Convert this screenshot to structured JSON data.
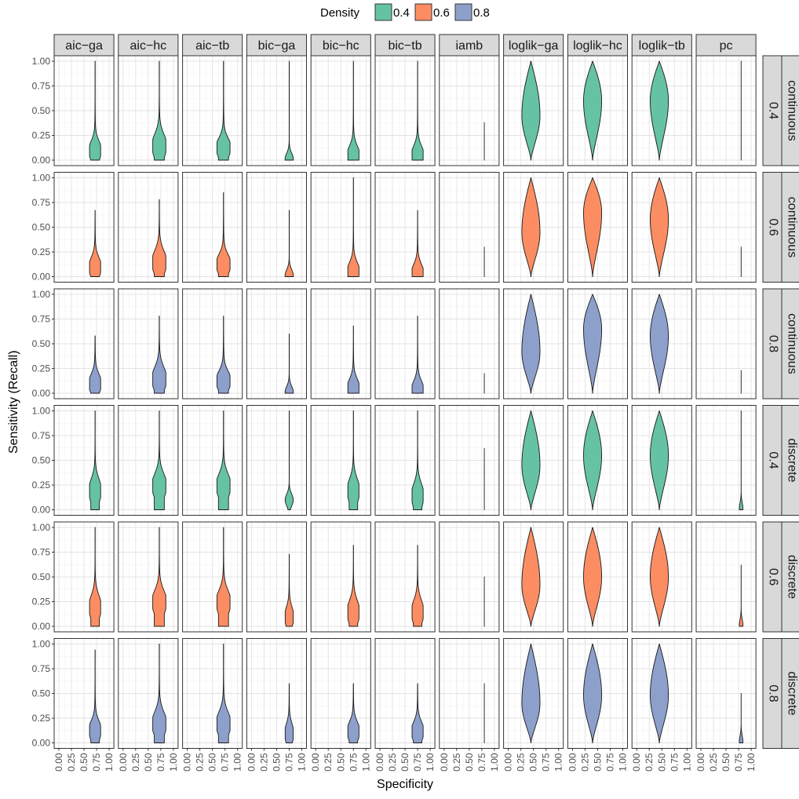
{
  "chart_data": {
    "type": "violin",
    "xlabel": "Specificity",
    "ylabel": "Sensitivity (Recall)",
    "legend": {
      "title": "Density",
      "placement": "top",
      "entries": [
        {
          "label": "0.4",
          "color": "#66c2a5"
        },
        {
          "label": "0.6",
          "color": "#fc8d62"
        },
        {
          "label": "0.8",
          "color": "#8da0cb"
        }
      ]
    },
    "xlim": [
      0,
      1
    ],
    "ylim": [
      0,
      1
    ],
    "x_ticks": [
      "0.00",
      "0.25",
      "0.50",
      "0.75",
      "1.00"
    ],
    "y_ticks": [
      "0.00",
      "0.25",
      "0.50",
      "0.75",
      "1.00"
    ],
    "grid": true,
    "column_facets": [
      "aic−ga",
      "aic−hc",
      "aic−tb",
      "bic−ga",
      "bic−hc",
      "bic−tb",
      "iamb",
      "loglik−ga",
      "loglik−hc",
      "loglik−tb",
      "pc"
    ],
    "row_facets": [
      {
        "type": "continuous",
        "density": "0.4"
      },
      {
        "type": "continuous",
        "density": "0.6"
      },
      {
        "type": "continuous",
        "density": "0.8"
      },
      {
        "type": "discrete",
        "density": "0.4"
      },
      {
        "type": "discrete",
        "density": "0.6"
      },
      {
        "type": "discrete",
        "density": "0.8"
      }
    ],
    "panel_data_fields": [
      "x_specificity",
      "min",
      "max",
      "mode",
      "width",
      "shape"
    ],
    "panels": [
      [
        [
          0.72,
          0,
          1,
          0.1,
          0.22,
          "skew"
        ],
        [
          0.72,
          0,
          1,
          0.15,
          0.26,
          "skew"
        ],
        [
          0.72,
          0,
          1,
          0.13,
          0.26,
          "skew"
        ],
        [
          0.75,
          0,
          1,
          0.01,
          0.16,
          "spike"
        ],
        [
          0.75,
          0,
          1,
          0.05,
          0.22,
          "skew"
        ],
        [
          0.75,
          0,
          1,
          0.05,
          0.22,
          "skew"
        ],
        [
          0.8,
          0,
          0.38,
          0,
          0.06,
          "line"
        ],
        [
          0.45,
          0,
          1,
          0.45,
          0.36,
          "diamond"
        ],
        [
          0.4,
          0,
          1,
          0.6,
          0.36,
          "diamond"
        ],
        [
          0.45,
          0,
          1,
          0.6,
          0.36,
          "diamond"
        ],
        [
          0.8,
          0,
          1,
          0,
          0.07,
          "line"
        ]
      ],
      [
        [
          0.72,
          0,
          0.67,
          0.1,
          0.22,
          "skew"
        ],
        [
          0.72,
          0,
          0.78,
          0.15,
          0.26,
          "skew"
        ],
        [
          0.72,
          0,
          0.85,
          0.13,
          0.26,
          "skew"
        ],
        [
          0.75,
          0,
          0.67,
          0.01,
          0.16,
          "spike"
        ],
        [
          0.75,
          0,
          1,
          0.05,
          0.22,
          "skew"
        ],
        [
          0.75,
          0,
          0.67,
          0.03,
          0.22,
          "skew"
        ],
        [
          0.8,
          0,
          0.3,
          0,
          0.06,
          "line"
        ],
        [
          0.45,
          0,
          1,
          0.45,
          0.36,
          "diamond"
        ],
        [
          0.4,
          0,
          1,
          0.65,
          0.36,
          "diamond"
        ],
        [
          0.45,
          0,
          1,
          0.58,
          0.36,
          "diamond"
        ],
        [
          0.8,
          0,
          0.3,
          0,
          0.07,
          "line"
        ]
      ],
      [
        [
          0.72,
          0,
          0.58,
          0.1,
          0.22,
          "skew"
        ],
        [
          0.72,
          0,
          0.78,
          0.15,
          0.26,
          "skew"
        ],
        [
          0.72,
          0,
          0.78,
          0.13,
          0.26,
          "skew"
        ],
        [
          0.75,
          0,
          0.6,
          0.01,
          0.16,
          "spike"
        ],
        [
          0.75,
          0,
          0.68,
          0.05,
          0.22,
          "skew"
        ],
        [
          0.75,
          0,
          0.78,
          0.03,
          0.22,
          "skew"
        ],
        [
          0.8,
          0,
          0.2,
          0,
          0.06,
          "line"
        ],
        [
          0.45,
          0,
          1,
          0.42,
          0.36,
          "diamond"
        ],
        [
          0.4,
          0,
          1,
          0.65,
          0.36,
          "diamond"
        ],
        [
          0.45,
          0,
          1,
          0.58,
          0.36,
          "diamond"
        ],
        [
          0.8,
          0,
          0.23,
          0,
          0.07,
          "line"
        ]
      ],
      [
        [
          0.72,
          0,
          1,
          0.2,
          0.22,
          "skew"
        ],
        [
          0.72,
          0,
          1,
          0.25,
          0.26,
          "skew"
        ],
        [
          0.72,
          0,
          1,
          0.25,
          0.26,
          "skew"
        ],
        [
          0.75,
          0,
          1,
          0.1,
          0.16,
          "spike"
        ],
        [
          0.75,
          0,
          1,
          0.2,
          0.22,
          "skew"
        ],
        [
          0.75,
          0,
          1,
          0.15,
          0.22,
          "skew"
        ],
        [
          0.8,
          0,
          0.62,
          0,
          0.06,
          "line"
        ],
        [
          0.45,
          0,
          1,
          0.45,
          0.36,
          "diamond"
        ],
        [
          0.4,
          0,
          1,
          0.55,
          0.36,
          "diamond"
        ],
        [
          0.45,
          0,
          1,
          0.55,
          0.36,
          "diamond"
        ],
        [
          0.8,
          0,
          1,
          0.01,
          0.07,
          "spike"
        ]
      ],
      [
        [
          0.72,
          0,
          1,
          0.2,
          0.22,
          "skew"
        ],
        [
          0.72,
          0,
          1,
          0.25,
          0.26,
          "skew"
        ],
        [
          0.72,
          0,
          1,
          0.25,
          0.26,
          "skew"
        ],
        [
          0.75,
          0,
          0.73,
          0.1,
          0.16,
          "skew"
        ],
        [
          0.75,
          0,
          0.82,
          0.15,
          0.22,
          "skew"
        ],
        [
          0.75,
          0,
          0.82,
          0.15,
          0.22,
          "skew"
        ],
        [
          0.8,
          0,
          0.5,
          0,
          0.06,
          "line"
        ],
        [
          0.45,
          0,
          1,
          0.42,
          0.36,
          "diamond"
        ],
        [
          0.4,
          0,
          1,
          0.5,
          0.36,
          "diamond"
        ],
        [
          0.45,
          0,
          1,
          0.5,
          0.36,
          "diamond"
        ],
        [
          0.8,
          0,
          0.62,
          0.01,
          0.07,
          "spike"
        ]
      ],
      [
        [
          0.72,
          0,
          0.94,
          0.13,
          0.22,
          "skew"
        ],
        [
          0.72,
          0,
          1,
          0.2,
          0.26,
          "skew"
        ],
        [
          0.72,
          0,
          1,
          0.2,
          0.26,
          "skew"
        ],
        [
          0.75,
          0,
          0.6,
          0.1,
          0.16,
          "skew"
        ],
        [
          0.75,
          0,
          0.6,
          0.12,
          0.22,
          "skew"
        ],
        [
          0.75,
          0,
          0.6,
          0.12,
          0.22,
          "skew"
        ],
        [
          0.8,
          0,
          0.6,
          0,
          0.06,
          "line"
        ],
        [
          0.45,
          0,
          1,
          0.4,
          0.36,
          "diamond"
        ],
        [
          0.4,
          0,
          1,
          0.48,
          0.36,
          "diamond"
        ],
        [
          0.45,
          0,
          1,
          0.48,
          0.36,
          "diamond"
        ],
        [
          0.8,
          0,
          0.5,
          0.01,
          0.07,
          "spike"
        ]
      ]
    ]
  }
}
